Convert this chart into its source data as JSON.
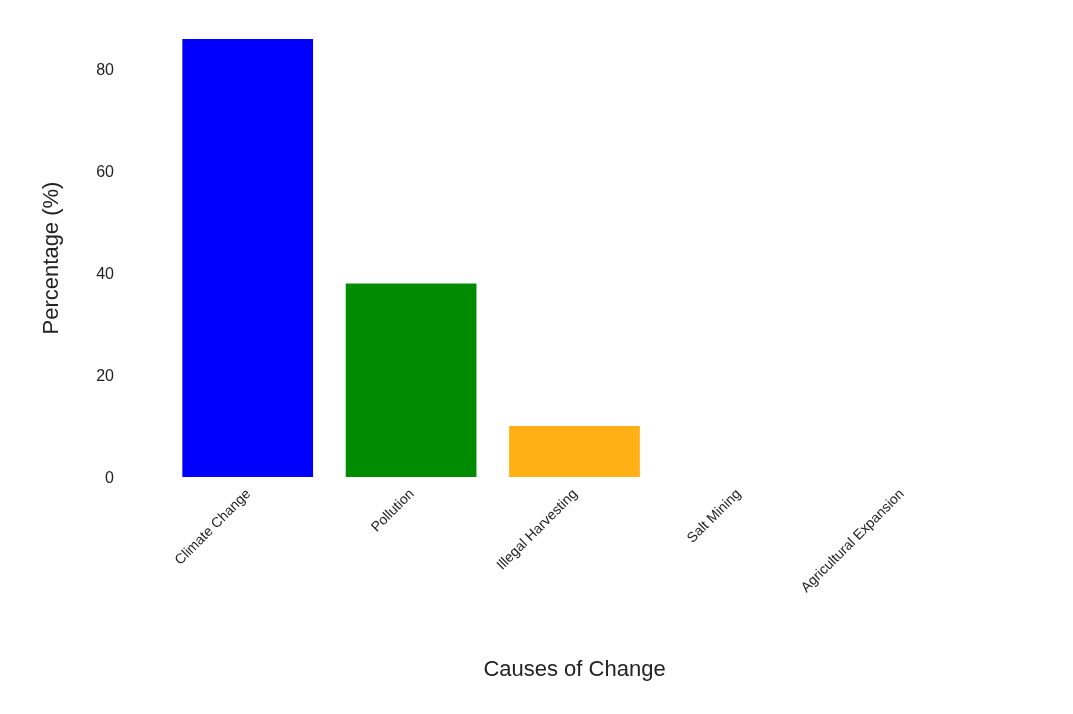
{
  "chart_data": {
    "type": "bar",
    "xlabel": "Causes of Change",
    "ylabel": "Percentage (%)",
    "categories": [
      "Climate Change",
      "Pollution",
      "Illegal Harvesting",
      "Salt Mining",
      "Agricultural Expansion"
    ],
    "values": [
      86,
      38,
      10,
      0,
      0
    ],
    "colors": [
      "#0000ff",
      "#008c00",
      "#ffb014",
      null,
      null
    ],
    "ylim": [
      0,
      86
    ],
    "yticks": [
      0,
      20,
      40,
      60,
      80
    ],
    "grid": false
  }
}
